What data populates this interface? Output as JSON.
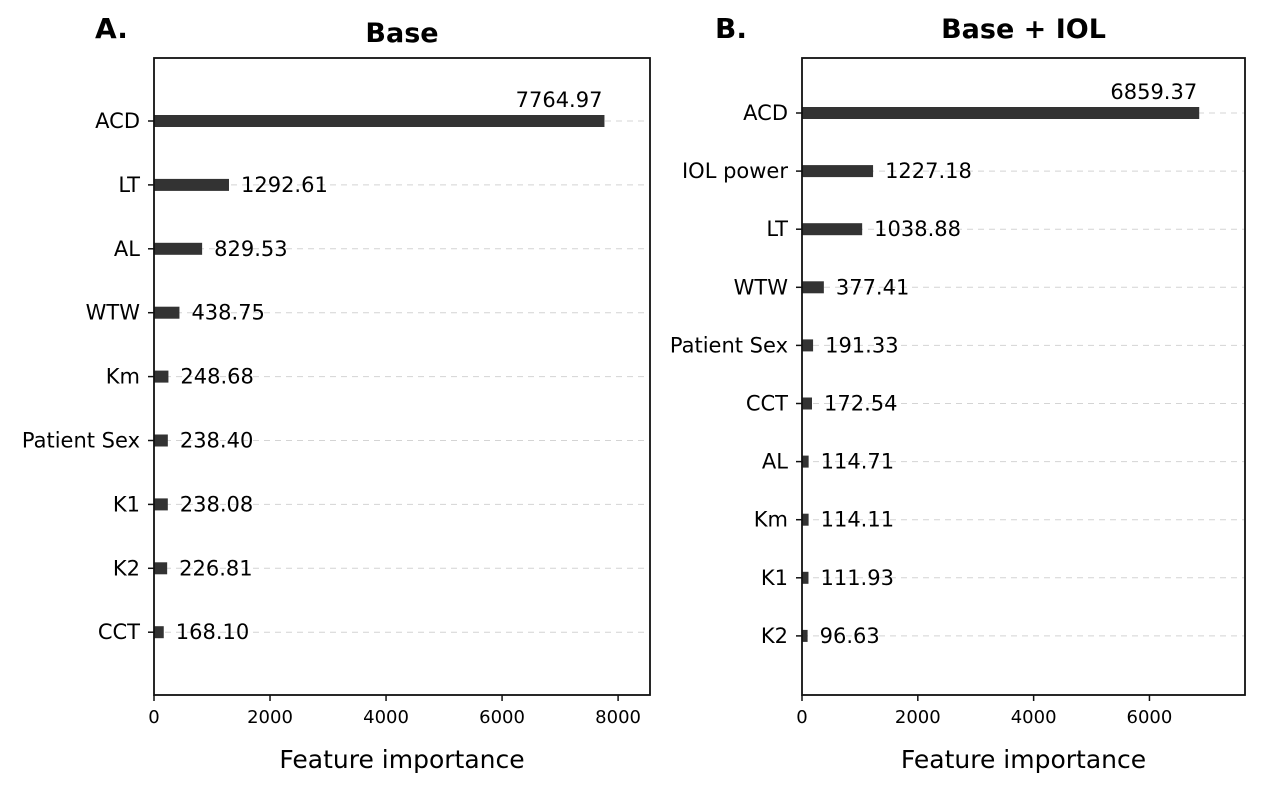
{
  "chart_data": [
    {
      "type": "bar",
      "orientation": "horizontal",
      "panel_label": "A.",
      "title": "Base",
      "xlabel": "Feature importance",
      "ylabel": "",
      "xlim": [
        0,
        8550
      ],
      "xticks": [
        0,
        2000,
        4000,
        6000,
        8000
      ],
      "grid": "horizontal dashed",
      "bar_color": "#333333",
      "categories": [
        "ACD",
        "LT",
        "AL",
        "WTW",
        "Km",
        "Patient Sex",
        "K1",
        "K2",
        "CCT"
      ],
      "values": [
        7764.97,
        1292.61,
        829.53,
        438.75,
        248.68,
        238.4,
        238.08,
        226.81,
        168.1
      ],
      "value_labels": [
        "7764.97",
        "1292.61",
        "829.53",
        "438.75",
        "248.68",
        "238.40",
        "238.08",
        "226.81",
        "168.10"
      ]
    },
    {
      "type": "bar",
      "orientation": "horizontal",
      "panel_label": "B.",
      "title": "Base + IOL",
      "xlabel": "Feature importance",
      "ylabel": "",
      "xlim": [
        0,
        7650
      ],
      "xticks": [
        0,
        2000,
        4000,
        6000
      ],
      "grid": "horizontal dashed",
      "bar_color": "#333333",
      "categories": [
        "ACD",
        "IOL power",
        "LT",
        "WTW",
        "Patient Sex",
        "CCT",
        "AL",
        "Km",
        "K1",
        "K2"
      ],
      "values": [
        6859.37,
        1227.18,
        1038.88,
        377.41,
        191.33,
        172.54,
        114.71,
        114.11,
        111.93,
        96.63
      ],
      "value_labels": [
        "6859.37",
        "1227.18",
        "1038.88",
        "377.41",
        "191.33",
        "172.54",
        "114.71",
        "114.11",
        "111.93",
        "96.63"
      ]
    }
  ]
}
